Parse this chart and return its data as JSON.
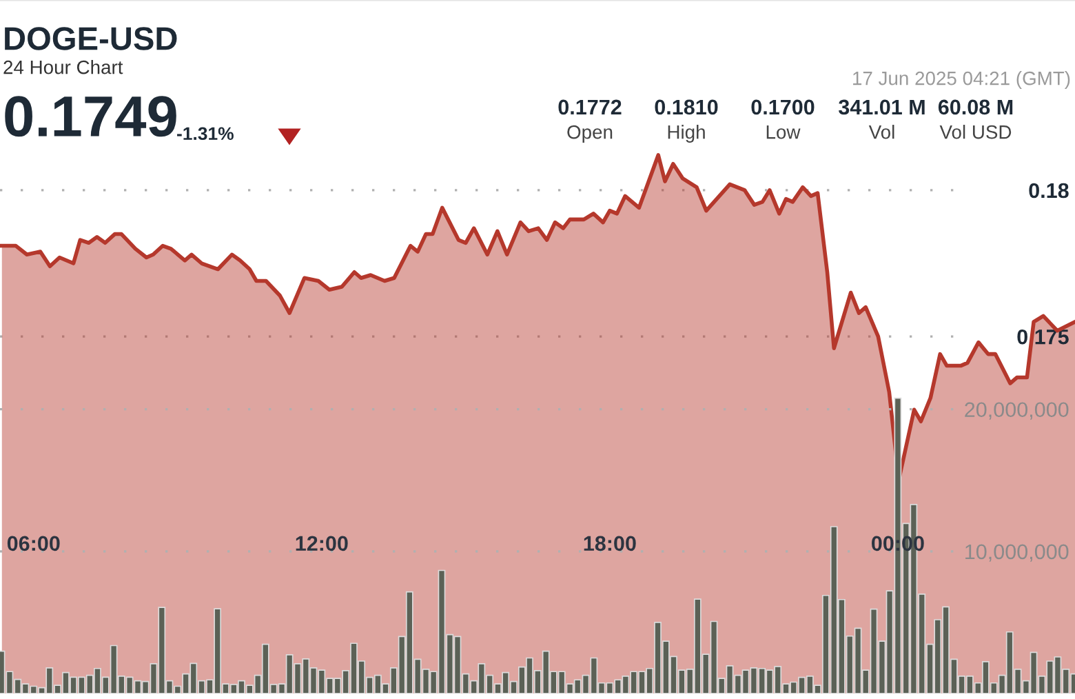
{
  "chart_data": {
    "type": "area",
    "title": "DOGE-USD",
    "subtitle": "24 Hour Chart",
    "annotations": [
      "0.1749",
      "-1.31%",
      "0.1772",
      "Open",
      "0.1810",
      "High",
      "0.1700",
      "Low",
      "341.01 M",
      "Vol",
      "60.08 M",
      "Vol USD",
      "17 Jun 2025 04:21 (GMT)"
    ],
    "series": [
      {
        "color": "#b5382c",
        "x": [
          5.34,
          5.63,
          5.86,
          6.14,
          6.34,
          6.54,
          6.83,
          6.97,
          7.15,
          7.32,
          7.49,
          7.69,
          7.83,
          8.12,
          8.35,
          8.49,
          8.69,
          8.86,
          9.15,
          9.29,
          9.5,
          9.84,
          10.13,
          10.3,
          10.5,
          10.64,
          10.84,
          11.13,
          11.33,
          11.64,
          11.93,
          12.16,
          12.42,
          12.68,
          12.82,
          13.02,
          13.31,
          13.51,
          13.85,
          14.0,
          14.17,
          14.31,
          14.51,
          14.85,
          15.0,
          15.17,
          15.45,
          15.66,
          15.86,
          16.14,
          16.31,
          16.51,
          16.69,
          16.86,
          17.03,
          17.17,
          17.46,
          17.66,
          17.86,
          18.0,
          18.15,
          18.32,
          18.61,
          19.01,
          19.15,
          19.32,
          19.52,
          19.81,
          20.01,
          20.5,
          20.81,
          21.01,
          21.18,
          21.33,
          21.53,
          21.67,
          21.81,
          22.02,
          22.19,
          22.33,
          22.53,
          22.67,
          23.02,
          23.19,
          23.33,
          23.59,
          23.82,
          24.02,
          24.34,
          24.48,
          24.68,
          24.88,
          25.02,
          25.31,
          25.45,
          25.68,
          25.88,
          26.03,
          26.34,
          26.48,
          26.69,
          26.83,
          27.03,
          27.32,
          27.69
        ],
        "values": [
          0.1781,
          0.1781,
          0.1778,
          0.1779,
          0.1774,
          0.1777,
          0.1775,
          0.1783,
          0.1782,
          0.1784,
          0.1782,
          0.1785,
          0.1785,
          0.178,
          0.1777,
          0.1778,
          0.1781,
          0.178,
          0.1776,
          0.1778,
          0.1775,
          0.1773,
          0.1778,
          0.1776,
          0.1773,
          0.1769,
          0.1769,
          0.1764,
          0.1758,
          0.177,
          0.1769,
          0.1766,
          0.1767,
          0.1772,
          0.177,
          0.1771,
          0.1769,
          0.177,
          0.1781,
          0.1779,
          0.1785,
          0.1785,
          0.1794,
          0.1783,
          0.1782,
          0.1787,
          0.1778,
          0.1786,
          0.1778,
          0.1789,
          0.1786,
          0.1787,
          0.1783,
          0.1789,
          0.1787,
          0.179,
          0.179,
          0.1792,
          0.1789,
          0.1793,
          0.1792,
          0.1798,
          0.1794,
          0.1812,
          0.1803,
          0.1809,
          0.1804,
          0.1801,
          0.1793,
          0.1802,
          0.18,
          0.1795,
          0.1796,
          0.18,
          0.1792,
          0.1797,
          0.1796,
          0.1801,
          0.1798,
          0.1799,
          0.1772,
          0.1746,
          0.1765,
          0.1758,
          0.176,
          0.175,
          0.1731,
          0.1701,
          0.1725,
          0.1721,
          0.1729,
          0.1744,
          0.174,
          0.174,
          0.1741,
          0.1748,
          0.1744,
          0.1744,
          0.1734,
          0.1736,
          0.1736,
          0.1755,
          0.1757,
          0.1752,
          0.1755
        ]
      },
      {
        "type": "bar",
        "axis": "y2",
        "color": "#5b6156",
        "x": [
          5.33,
          5.5,
          5.67,
          5.83,
          6.0,
          6.17,
          6.33,
          6.5,
          6.67,
          6.83,
          7.0,
          7.17,
          7.33,
          7.5,
          7.67,
          7.83,
          8.0,
          8.17,
          8.33,
          8.5,
          8.67,
          8.83,
          9.0,
          9.17,
          9.33,
          9.5,
          9.67,
          9.83,
          10.0,
          10.17,
          10.33,
          10.5,
          10.67,
          10.83,
          11.0,
          11.17,
          11.33,
          11.5,
          11.67,
          11.83,
          12.0,
          12.17,
          12.33,
          12.5,
          12.67,
          12.83,
          13.0,
          13.17,
          13.33,
          13.5,
          13.67,
          13.83,
          14.0,
          14.17,
          14.33,
          14.5,
          14.67,
          14.83,
          15.0,
          15.17,
          15.33,
          15.5,
          15.67,
          15.83,
          16.0,
          16.17,
          16.33,
          16.5,
          16.67,
          16.83,
          17.0,
          17.17,
          17.33,
          17.5,
          17.67,
          17.83,
          18.0,
          18.17,
          18.33,
          18.5,
          18.67,
          18.83,
          19.0,
          19.17,
          19.33,
          19.5,
          19.67,
          19.83,
          20.0,
          20.17,
          20.33,
          20.5,
          20.67,
          20.83,
          21.0,
          21.17,
          21.33,
          21.5,
          21.67,
          21.83,
          22.0,
          22.17,
          22.33,
          22.5,
          22.67,
          22.83,
          23.0,
          23.17,
          23.33,
          23.5,
          23.67,
          23.83,
          24.0,
          24.17,
          24.33,
          24.5,
          24.67,
          24.83,
          25.0,
          25.17,
          25.33,
          25.5,
          25.67,
          25.83,
          26.0,
          26.17,
          26.33,
          26.5,
          26.67,
          26.83,
          27.0,
          27.17,
          27.33,
          27.5,
          27.67
        ],
        "values": [
          2980000,
          1540000,
          990000,
          670000,
          510000,
          410000,
          1800000,
          580000,
          1470000,
          1150000,
          1150000,
          1280000,
          1760000,
          1150000,
          3370000,
          1220000,
          1150000,
          890000,
          840000,
          2090000,
          6060000,
          890000,
          510000,
          1380000,
          2120000,
          890000,
          960000,
          5960000,
          670000,
          640000,
          890000,
          580000,
          1280000,
          3460000,
          640000,
          670000,
          2720000,
          2090000,
          2430000,
          1800000,
          1640000,
          1060000,
          1060000,
          1610000,
          3530000,
          2280000,
          1130000,
          1280000,
          670000,
          1800000,
          4010000,
          7150000,
          2410000,
          1700000,
          1540000,
          8660000,
          4140000,
          4010000,
          1380000,
          890000,
          2090000,
          1280000,
          670000,
          1470000,
          840000,
          1860000,
          2500000,
          1610000,
          2980000,
          1540000,
          1540000,
          670000,
          960000,
          1280000,
          2500000,
          740000,
          740000,
          960000,
          1220000,
          1540000,
          1540000,
          1760000,
          5000000,
          3680000,
          2600000,
          1640000,
          1700000,
          6640000,
          2760000,
          5070000,
          1060000,
          1950000,
          1280000,
          1640000,
          1800000,
          1760000,
          1640000,
          1900000,
          670000,
          800000,
          1130000,
          1220000,
          580000,
          6900000,
          11740000,
          6610000,
          4040000,
          4590000,
          1640000,
          5940000,
          3680000,
          7220000,
          20780000,
          11960000,
          13300000,
          6990000,
          3460000,
          5190000,
          6090000,
          2410000,
          1220000,
          1220000,
          740000,
          2240000,
          740000,
          1280000,
          4330000,
          1700000,
          890000,
          2890000,
          1220000,
          2280000,
          2570000,
          1700000,
          1380000
        ]
      }
    ],
    "xlim": [
      5.3,
      27.69
    ],
    "xticks": [
      {
        "value": 6,
        "label": "06:00"
      },
      {
        "value": 12,
        "label": "12:00"
      },
      {
        "value": 18,
        "label": "18:00"
      },
      {
        "value": 24,
        "label": "00:00"
      }
    ],
    "ylim": [
      0.1628,
      0.1865
    ],
    "yticks": [
      {
        "value": 0.175,
        "label": "0.175"
      },
      {
        "value": 0.18,
        "label": "0.18"
      }
    ],
    "y2lim": [
      0,
      48800000
    ],
    "y2ticks": [
      {
        "value": 10000000,
        "label": "10,000,000"
      },
      {
        "value": 20000000,
        "label": "20,000,000"
      }
    ],
    "grid": "y",
    "legend": false,
    "marker": "none",
    "line_style": "solid"
  }
}
